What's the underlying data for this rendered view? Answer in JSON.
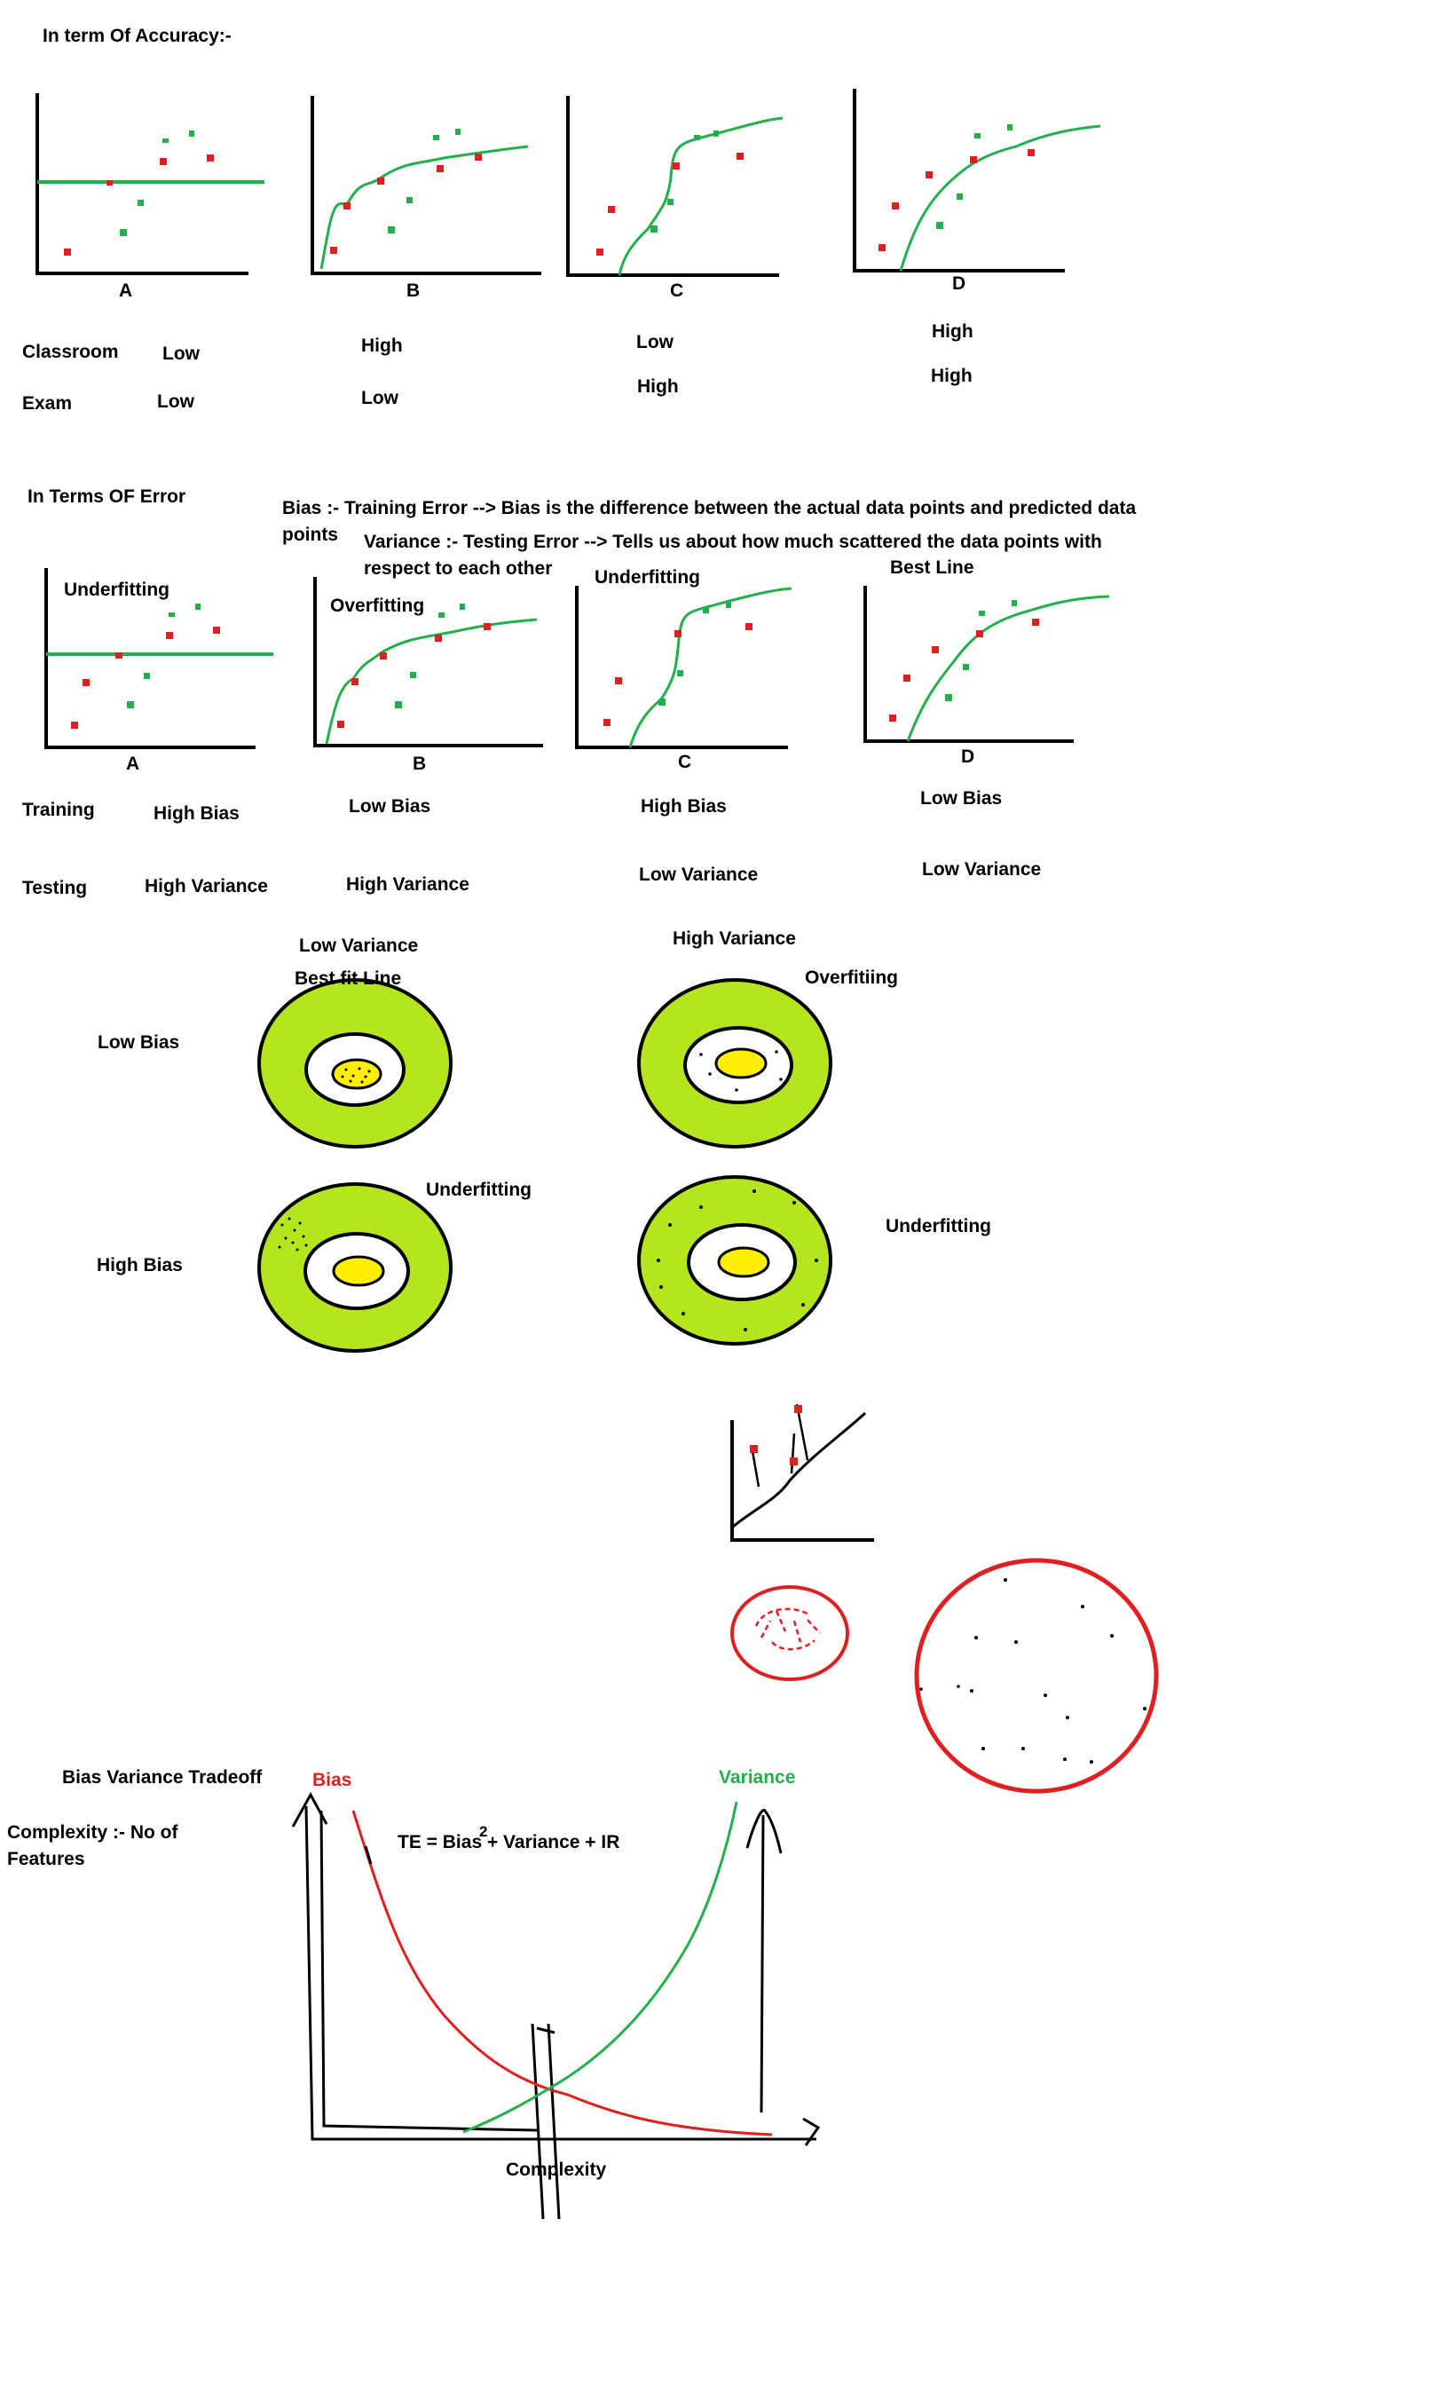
{
  "accuracy": {
    "heading": "In term Of Accuracy:-",
    "plots": [
      "A",
      "B",
      "C",
      "D"
    ],
    "rows": {
      "classroom": {
        "label": "Classroom",
        "values": [
          "Low",
          "High",
          "Low",
          "High"
        ]
      },
      "exam": {
        "label": "Exam",
        "values": [
          "Low",
          "Low",
          "High",
          "High"
        ]
      }
    }
  },
  "error": {
    "heading": "In Terms OF Error",
    "bias_def": "Bias :- Training Error --> Bias is the difference between the actual data points and predicted data points",
    "variance_def": "Variance :- Testing Error --> Tells us about how much scattered the data points with respect to each other",
    "plot_titles": [
      "Underfitting",
      "Overfitting",
      "Underfitting",
      "Best Line"
    ],
    "plots": [
      "A",
      "B",
      "C",
      "D"
    ],
    "rows": {
      "training": {
        "label": "Training",
        "values": [
          "High Bias",
          "Low Bias",
          "High Bias",
          "Low Bias"
        ]
      },
      "testing": {
        "label": "Testing",
        "values": [
          "High Variance",
          "High Variance",
          "Low Variance",
          "Low Variance"
        ]
      }
    }
  },
  "targets": {
    "low_variance": "Low Variance",
    "high_variance": "High Variance",
    "best_fit": "Best fit Line",
    "overfitting": "Overfitiing",
    "underfitting_1": "Underfitting",
    "underfitting_2": "Underfitting",
    "low_bias": "Low Bias",
    "high_bias": "High Bias"
  },
  "tradeoff": {
    "heading": "Bias Variance Tradeoff",
    "complexity_def": "Complexity :- No of Features",
    "bias_label": "Bias",
    "variance_label": "Variance",
    "formula": "TE = Bias + Variance + IR",
    "formula_sup": "2",
    "xlabel": "Complexity"
  },
  "colors": {
    "red": "#e02020",
    "green": "#22b04c",
    "lime": "#b5e61d",
    "yellow": "#ffee00"
  }
}
